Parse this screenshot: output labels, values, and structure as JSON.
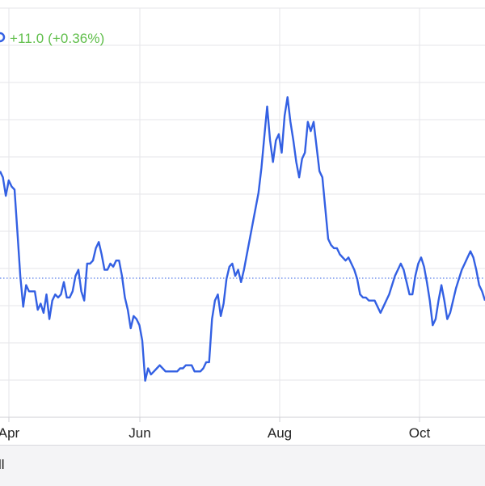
{
  "header": {
    "change_text": "+11.0 (+0.36%)",
    "change_color": "#5fbe4a"
  },
  "bottom_bar": {
    "label": "ll"
  },
  "chart_data": {
    "type": "line",
    "x_ticks": [
      "Apr",
      "Jun",
      "Aug",
      "Oct"
    ],
    "line_color": "#3360e3",
    "reference_line_style": "dotted",
    "grid": true,
    "series": [
      {
        "values": [
          0.72,
          0.7,
          0.64,
          0.69,
          0.67,
          0.66,
          0.52,
          0.38,
          0.28,
          0.35,
          0.33,
          0.33,
          0.33,
          0.27,
          0.29,
          0.26,
          0.32,
          0.24,
          0.3,
          0.32,
          0.31,
          0.32,
          0.36,
          0.31,
          0.31,
          0.33,
          0.38,
          0.4,
          0.33,
          0.3,
          0.42,
          0.42,
          0.43,
          0.47,
          0.49,
          0.45,
          0.4,
          0.4,
          0.42,
          0.41,
          0.43,
          0.43,
          0.38,
          0.31,
          0.27,
          0.21,
          0.25,
          0.24,
          0.22,
          0.17,
          0.04,
          0.08,
          0.06,
          0.07,
          0.08,
          0.09,
          0.08,
          0.07,
          0.07,
          0.07,
          0.07,
          0.07,
          0.08,
          0.08,
          0.09,
          0.09,
          0.09,
          0.07,
          0.07,
          0.07,
          0.08,
          0.1,
          0.1,
          0.24,
          0.3,
          0.32,
          0.25,
          0.29,
          0.37,
          0.41,
          0.42,
          0.38,
          0.4,
          0.36,
          0.4,
          0.45,
          0.5,
          0.55,
          0.6,
          0.65,
          0.73,
          0.83,
          0.93,
          0.82,
          0.75,
          0.82,
          0.84,
          0.78,
          0.9,
          0.96,
          0.88,
          0.82,
          0.75,
          0.7,
          0.76,
          0.78,
          0.88,
          0.85,
          0.88,
          0.8,
          0.72,
          0.7,
          0.6,
          0.5,
          0.48,
          0.47,
          0.47,
          0.45,
          0.44,
          0.43,
          0.44,
          0.42,
          0.4,
          0.37,
          0.32,
          0.31,
          0.31,
          0.3,
          0.3,
          0.3,
          0.28,
          0.26,
          0.28,
          0.3,
          0.32,
          0.35,
          0.38,
          0.4,
          0.42,
          0.4,
          0.36,
          0.32,
          0.32,
          0.38,
          0.42,
          0.44,
          0.41,
          0.36,
          0.3,
          0.22,
          0.24,
          0.3,
          0.35,
          0.3,
          0.24,
          0.26,
          0.3,
          0.34,
          0.37,
          0.4,
          0.42,
          0.44,
          0.46,
          0.44,
          0.4,
          0.35,
          0.33,
          0.3
        ]
      }
    ]
  }
}
